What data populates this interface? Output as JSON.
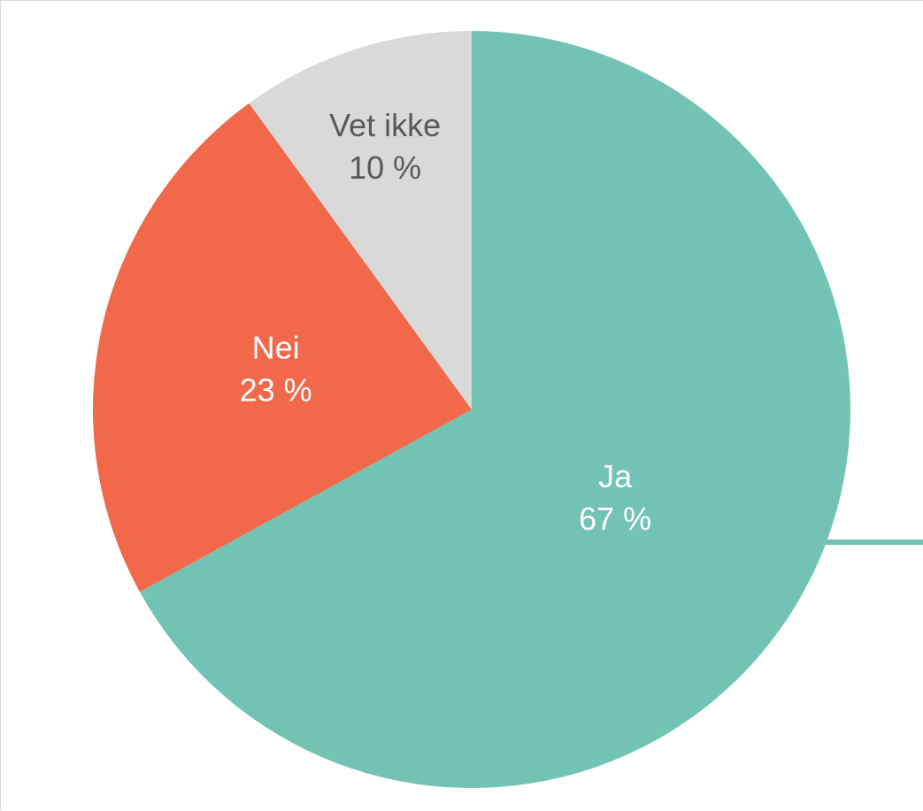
{
  "chart_data": {
    "type": "pie",
    "categories": [
      "Ja",
      "Nei",
      "Vet ikke"
    ],
    "values": [
      67,
      23,
      10
    ],
    "value_labels": [
      "67 %",
      "23 %",
      "10 %"
    ],
    "colors": [
      "#72c3b4",
      "#f2684a",
      "#d9d9d9"
    ],
    "label_colors": [
      "#ffffff",
      "#ffffff",
      "#595959"
    ],
    "start": "12 o'clock",
    "direction": "clockwise",
    "title": ""
  }
}
